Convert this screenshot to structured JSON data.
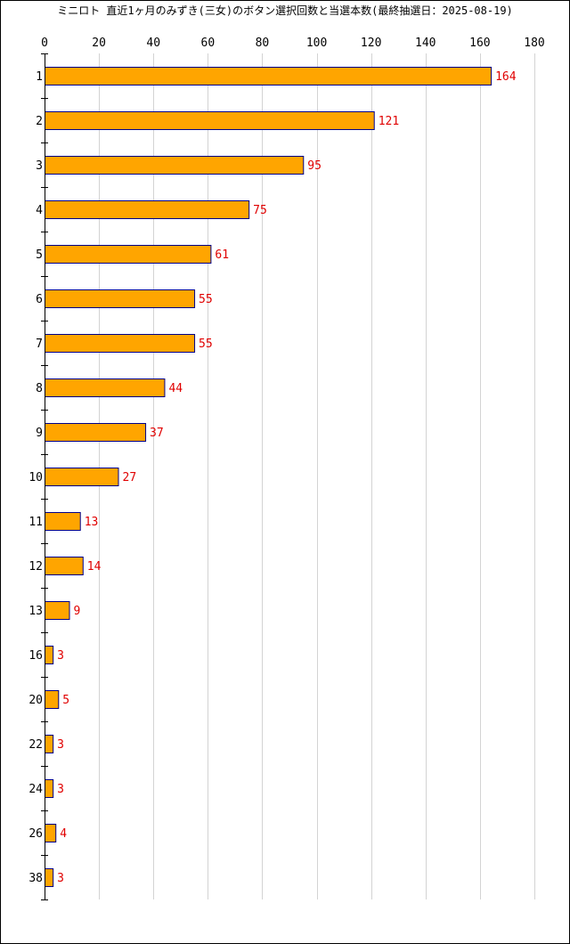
{
  "chart_data": {
    "type": "bar",
    "orientation": "horizontal",
    "title": "ミニロト 直近1ヶ月のみずき(三女)のボタン選択回数と当選本数(最終抽選日：2025-08-19)",
    "xlabel": "",
    "ylabel": "",
    "xlim": [
      0,
      180
    ],
    "xticks": [
      0,
      20,
      40,
      60,
      80,
      100,
      120,
      140,
      160,
      180
    ],
    "grid": true,
    "categories": [
      "1",
      "2",
      "3",
      "4",
      "5",
      "6",
      "7",
      "8",
      "9",
      "10",
      "11",
      "12",
      "13",
      "16",
      "20",
      "22",
      "24",
      "26",
      "38"
    ],
    "values": [
      164,
      121,
      95,
      75,
      61,
      55,
      55,
      44,
      37,
      27,
      13,
      14,
      9,
      3,
      5,
      3,
      3,
      4,
      3
    ],
    "bar_color": "#ffa500",
    "bar_border_color": "#00008b",
    "label_color": "#e00000",
    "grid_color": "#d3d3d3"
  }
}
